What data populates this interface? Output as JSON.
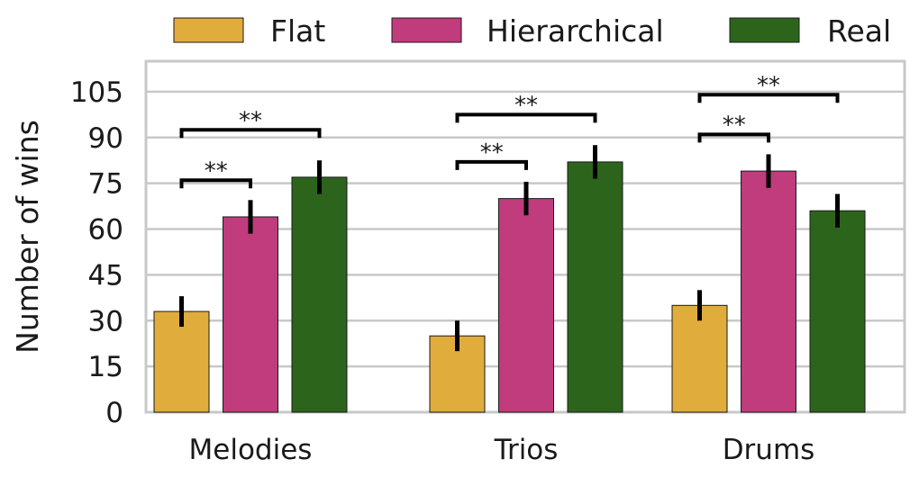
{
  "chart_data": {
    "type": "bar",
    "title": "",
    "xlabel": "",
    "ylabel": "Number of wins",
    "ylim": [
      0,
      115
    ],
    "yticks": [
      0,
      15,
      30,
      45,
      60,
      75,
      90,
      105
    ],
    "grid": "horizontal",
    "legend_position": "top",
    "categories": [
      "Melodies",
      "Trios",
      "Drums"
    ],
    "series": [
      {
        "name": "Flat",
        "color": "#E0AC3C",
        "values": [
          33,
          25,
          35
        ],
        "errors": [
          5,
          5,
          5
        ]
      },
      {
        "name": "Hierarchical",
        "color": "#C03C7C",
        "values": [
          64,
          70,
          79
        ],
        "errors": [
          5.5,
          5.5,
          5.5
        ]
      },
      {
        "name": "Real",
        "color": "#2C641C",
        "values": [
          77,
          82,
          66
        ],
        "errors": [
          5.5,
          5.5,
          5.5
        ]
      }
    ],
    "annotations": [
      {
        "category": "Melodies",
        "from": "Flat",
        "to": "Hierarchical",
        "y": 76,
        "text": "**"
      },
      {
        "category": "Melodies",
        "from": "Flat",
        "to": "Real",
        "y": 92.5,
        "text": "**"
      },
      {
        "category": "Trios",
        "from": "Flat",
        "to": "Hierarchical",
        "y": 82,
        "text": "**"
      },
      {
        "category": "Trios",
        "from": "Flat",
        "to": "Real",
        "y": 97.5,
        "text": "**"
      },
      {
        "category": "Drums",
        "from": "Flat",
        "to": "Hierarchical",
        "y": 91,
        "text": "**"
      },
      {
        "category": "Drums",
        "from": "Flat",
        "to": "Real",
        "y": 104,
        "text": "**"
      }
    ]
  }
}
